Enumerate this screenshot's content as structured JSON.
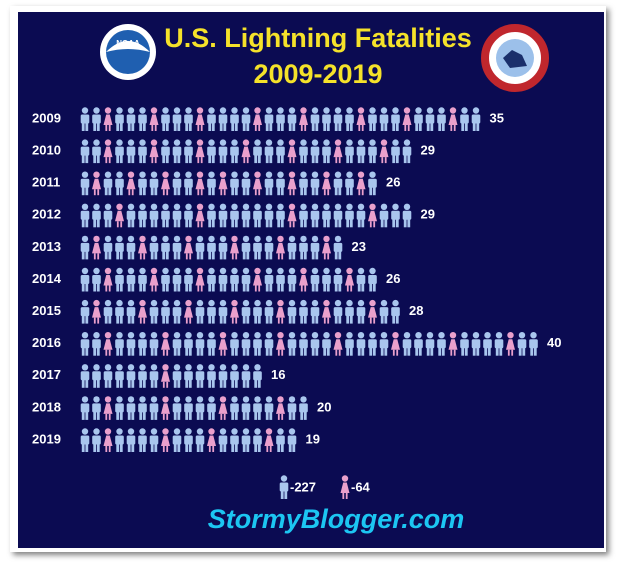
{
  "chart_data": {
    "type": "pictograph",
    "title": "U.S. Lightning Fatalities",
    "subtitle": "2009-2019",
    "categories": [
      "2009",
      "2010",
      "2011",
      "2012",
      "2013",
      "2014",
      "2015",
      "2016",
      "2017",
      "2018",
      "2019"
    ],
    "totals": [
      35,
      29,
      26,
      29,
      23,
      26,
      28,
      40,
      16,
      20,
      19
    ],
    "series": [
      {
        "color": "#a9c6ee",
        "values": [
          27,
          22,
          17,
          25,
          17,
          20,
          21,
          32,
          15,
          16,
          15
        ],
        "total": 227,
        "total_label": "-227"
      },
      {
        "color": "#eaa0cc",
        "values": [
          8,
          7,
          9,
          4,
          6,
          6,
          7,
          8,
          1,
          4,
          4
        ],
        "total": 64,
        "total_label": "-64"
      }
    ],
    "logo_text": "NOAA",
    "footer": "StormyBlogger.com"
  }
}
